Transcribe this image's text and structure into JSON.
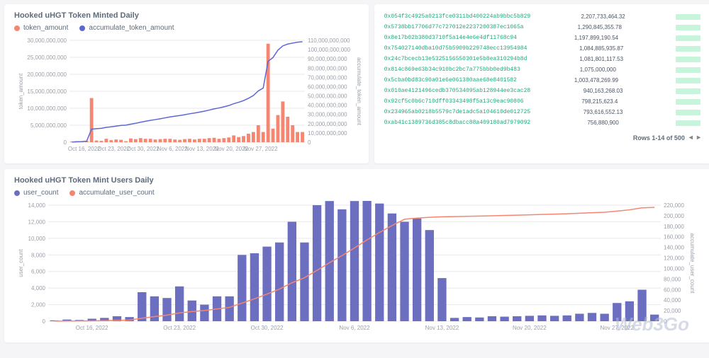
{
  "chart1": {
    "title": "Hooked uHGT Token Minted Daily",
    "legend": [
      {
        "label": "token_amount",
        "color": "#f58672"
      },
      {
        "label": "accumulate_token_amount",
        "color": "#5b68d4"
      }
    ],
    "y1_label": "token_amount",
    "y2_label": "accumulate_token_amount",
    "y1_max": 30000000000,
    "y1_ticks": [
      0,
      5000000000,
      10000000000,
      15000000000,
      20000000000,
      25000000000,
      30000000000
    ],
    "y1_tick_labels": [
      "0",
      "5,000,000,000",
      "10,000,000,000",
      "15,000,000,000",
      "20,000,000,000",
      "25,000,000,000",
      "30,000,000,000"
    ],
    "y2_max": 110000000000,
    "y2_ticks": [
      0,
      10000000000,
      20000000000,
      30000000000,
      40000000000,
      50000000000,
      60000000000,
      70000000000,
      80000000000,
      90000000000,
      100000000000,
      110000000000
    ],
    "y2_tick_labels": [
      "0",
      "10,000,000,000",
      "20,000,000,000",
      "30,000,000,000",
      "40,000,000,000",
      "50,000,000,000",
      "60,000,000,000",
      "70,000,000,000",
      "80,000,000,000",
      "90,000,000,000",
      "100,000,000,000",
      "110,000,000,000"
    ],
    "x_labels": [
      "Oct 16, 2022",
      "Oct 23, 2022",
      "Oct 30, 2022",
      "Nov 6, 2022",
      "Nov 13, 2022",
      "Nov 20, 2022",
      "Nov 27, 2022"
    ],
    "bars": [
      200000000,
      300000000,
      200000000,
      400000000,
      13000000000,
      500000000,
      400000000,
      1000000000,
      600000000,
      800000000,
      700000000,
      300000000,
      1100000000,
      900000000,
      1200000000,
      1000000000,
      1000000000,
      800000000,
      900000000,
      1000000000,
      1000000000,
      800000000,
      700000000,
      900000000,
      1000000000,
      800000000,
      1000000000,
      1000000000,
      1200000000,
      1300000000,
      1000000000,
      1200000000,
      1400000000,
      2000000000,
      1500000000,
      1800000000,
      2500000000,
      3000000000,
      5000000000,
      3000000000,
      29000000000,
      4000000000,
      8000000000,
      12000000000,
      7500000000,
      5000000000,
      3000000000,
      3000000000
    ],
    "line": [
      200000000,
      500000000,
      700000000,
      1100000000,
      14100000000,
      14600000000,
      15000000000,
      16000000000,
      16600000000,
      17400000000,
      18100000000,
      18400000000,
      19500000000,
      20400000000,
      21600000000,
      22600000000,
      23600000000,
      24400000000,
      25300000000,
      26300000000,
      27300000000,
      28100000000,
      28800000000,
      29700000000,
      30700000000,
      31500000000,
      32500000000,
      33500000000,
      34700000000,
      36000000000,
      37000000000,
      38200000000,
      39600000000,
      41600000000,
      43100000000,
      44900000000,
      47400000000,
      50400000000,
      55400000000,
      58400000000,
      87400000000,
      91400000000,
      99400000000,
      104000000000,
      106000000000,
      107000000000,
      108000000000,
      108500000000
    ],
    "bar_color": "#f58672",
    "line_color": "#5b68d4",
    "grid_color": "#e8e8ec"
  },
  "table": {
    "rows": [
      {
        "addr": "0x054f3c4925a0213fce0311bd400224ab9bbc5b829",
        "amt": "2,207,733,464.32"
      },
      {
        "addr": "0x5738bb17706d77c727012e2237200387ec1065a",
        "amt": "1,290,845,355.78"
      },
      {
        "addr": "0x8e17b02b380d3710f5a14e4e6e4df11768c94",
        "amt": "1,197,899,190.54"
      },
      {
        "addr": "0x754027140dba10d75b5909b229748ecc13954984",
        "amt": "1,084,885,935.87"
      },
      {
        "addr": "0x24c7bcecb13e5325156550301e5b8ea310294b8d",
        "amt": "1,081,801,117.53"
      },
      {
        "addr": "0x814c869e63b34c910bc2bc7a775bbb0ed9b483",
        "amt": "1,075,000,000"
      },
      {
        "addr": "0x5cba0bd83c90a01e6e061380aae68e8401582",
        "amt": "1,003,478,269.99"
      },
      {
        "addr": "0x010ae4121496cedb370534095ab128944ee3cac28",
        "amt": "940,163,268.03"
      },
      {
        "addr": "0x92cf5c0b6c710dff03343498f5a13c9eac90806",
        "amt": "798,215,623.4"
      },
      {
        "addr": "0x234965ab0218b5579c7de1adc5a104610de012725",
        "amt": "793,616,552.13"
      },
      {
        "addr": "0xab41c1389736d385c8dbacc88a409180ad7979092",
        "amt": "756,880,900"
      }
    ],
    "pager_text": "Rows 1-14 of 500"
  },
  "chart2": {
    "title": "Hooked uHGT Token Mint Users Daily",
    "legend": [
      {
        "label": "user_count",
        "color": "#6c6fbf"
      },
      {
        "label": "accumulate_user_count",
        "color": "#f58672"
      }
    ],
    "y1_label": "user_count",
    "y2_label": "accumulate_user_count",
    "y1_max": 14000,
    "y1_ticks": [
      0,
      2000,
      4000,
      6000,
      8000,
      10000,
      12000,
      14000
    ],
    "y1_tick_labels": [
      "0",
      "2,000",
      "4,000",
      "6,000",
      "8,000",
      "10,000",
      "12,000",
      "14,000"
    ],
    "y2_max": 220000,
    "y2_ticks": [
      0,
      20000,
      40000,
      60000,
      80000,
      100000,
      120000,
      140000,
      160000,
      180000,
      200000,
      220000
    ],
    "y2_tick_labels": [
      "0",
      "20,000",
      "40,000",
      "60,000",
      "80,000",
      "100,000",
      "120,000",
      "140,000",
      "160,000",
      "180,000",
      "200,000",
      "220,000"
    ],
    "x_labels": [
      "Oct 16, 2022",
      "Oct 23, 2022",
      "Oct 30, 2022",
      "Nov 6, 2022",
      "Nov 13, 2022",
      "Nov 20, 2022",
      "Nov 27, 2022"
    ],
    "bars": [
      100,
      200,
      150,
      300,
      400,
      600,
      500,
      3500,
      3000,
      2800,
      4200,
      2500,
      2000,
      3000,
      3000,
      8000,
      8200,
      9000,
      9500,
      12000,
      9500,
      14000,
      14500,
      13500,
      14500,
      15200,
      14200,
      13000,
      12000,
      12400,
      11000,
      5200,
      400,
      500,
      450,
      600,
      550,
      600,
      650,
      700,
      650,
      700,
      900,
      1000,
      900,
      2200,
      2400,
      3800,
      800
    ],
    "line": [
      100,
      300,
      450,
      750,
      1150,
      1750,
      2250,
      5750,
      8750,
      11550,
      15750,
      18250,
      20250,
      23250,
      26250,
      34250,
      42450,
      51450,
      60950,
      72950,
      82450,
      96450,
      110950,
      124450,
      138950,
      154150,
      168350,
      181350,
      193350,
      195500,
      197000,
      198000,
      198400,
      198900,
      199350,
      199950,
      200500,
      201100,
      201750,
      202450,
      203100,
      203800,
      204700,
      205700,
      206600,
      208800,
      211200,
      215000,
      215800
    ],
    "bar_color": "#6c6fbf",
    "line_color": "#f58672",
    "grid_color": "#e8e8ec"
  },
  "watermark": "Web3Go"
}
